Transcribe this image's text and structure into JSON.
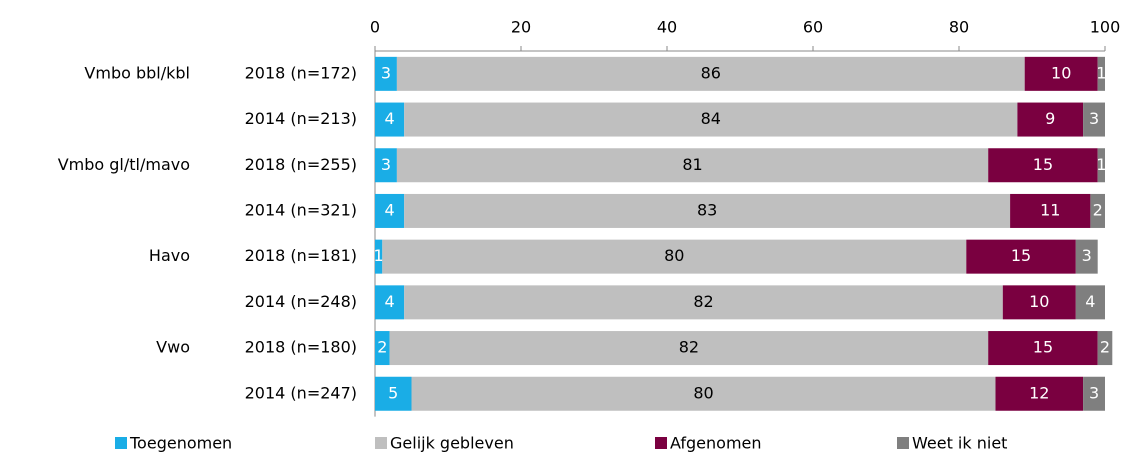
{
  "chart_data": {
    "type": "stacked-bar-horizontal",
    "groups": [
      "Vmbo bbl/kbl",
      null,
      "Vmbo gl/tl/mavo",
      null,
      "Havo",
      null,
      "Vwo",
      null
    ],
    "categories": [
      "2018 (n=172)",
      "2014 (n=213)",
      "2018 (n=255)",
      "2014 (n=321)",
      "2018 (n=181)",
      "2014 (n=248)",
      "2018 (n=180)",
      "2014 (n=247)"
    ],
    "series": [
      {
        "name": "Toegenomen",
        "color": "#1aade6",
        "values": [
          3,
          4,
          3,
          4,
          1,
          4,
          2,
          5
        ]
      },
      {
        "name": "Gelijk gebleven",
        "color": "#bfbfbf",
        "values": [
          86,
          84,
          81,
          83,
          80,
          82,
          82,
          80
        ]
      },
      {
        "name": "Afgenomen",
        "color": "#7a0040",
        "values": [
          10,
          9,
          15,
          11,
          15,
          10,
          15,
          12
        ]
      },
      {
        "name": "Weet ik niet",
        "color": "#7f7f7f",
        "values": [
          1,
          3,
          1,
          2,
          3,
          4,
          2,
          3
        ]
      }
    ],
    "xlim": [
      0,
      100
    ],
    "xticks": [
      0,
      20,
      40,
      60,
      80,
      100
    ],
    "legend": "bottom"
  }
}
